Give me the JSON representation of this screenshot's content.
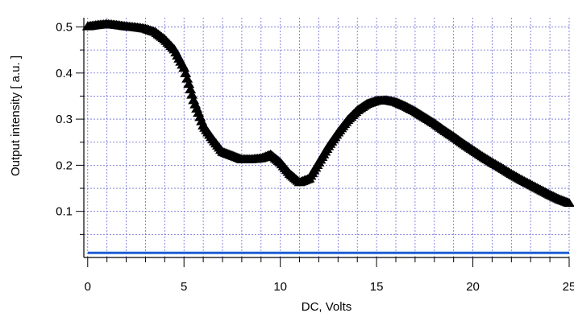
{
  "chart_data": {
    "type": "scatter",
    "xlabel": "DC, Volts",
    "ylabel": "Output intensity [ a.u. ]",
    "xlim": [
      -0.2,
      25
    ],
    "ylim": [
      0.0,
      0.52
    ],
    "xticks": [
      0,
      5,
      10,
      15,
      20,
      25
    ],
    "xtick_labels": [
      "0",
      "5",
      "10",
      "15",
      "20",
      "25"
    ],
    "yticks": [
      0.1,
      0.2,
      0.3,
      0.4,
      0.5
    ],
    "ytick_labels": [
      "0.1",
      "0.2",
      "0.3",
      "0.4",
      "0.5"
    ],
    "grid": true,
    "grid_color": "#6b6bd6",
    "legend": "none",
    "series": [
      {
        "marker": "triangle",
        "color": "#000000",
        "x": [
          0,
          0.5,
          1,
          1.5,
          2,
          2.5,
          3,
          3.5,
          4,
          4.5,
          5,
          5.5,
          6,
          6.5,
          7,
          7.5,
          8,
          8.5,
          9,
          9.5,
          10,
          10.5,
          11,
          11.5,
          12,
          12.5,
          13,
          13.5,
          14,
          14.5,
          15,
          15.5,
          16,
          16.5,
          17,
          17.5,
          18,
          18.5,
          19,
          19.5,
          20,
          20.5,
          21,
          21.5,
          22,
          22.5,
          23,
          23.5,
          24,
          24.5,
          25
        ],
        "y": [
          0.5,
          0.503,
          0.505,
          0.503,
          0.5,
          0.498,
          0.495,
          0.488,
          0.472,
          0.45,
          0.41,
          0.34,
          0.285,
          0.255,
          0.228,
          0.22,
          0.212,
          0.212,
          0.214,
          0.222,
          0.205,
          0.18,
          0.162,
          0.17,
          0.205,
          0.24,
          0.27,
          0.297,
          0.318,
          0.332,
          0.339,
          0.34,
          0.336,
          0.327,
          0.316,
          0.303,
          0.29,
          0.275,
          0.261,
          0.246,
          0.232,
          0.218,
          0.205,
          0.193,
          0.18,
          0.168,
          0.157,
          0.146,
          0.135,
          0.125,
          0.117
        ]
      },
      {
        "marker": "line",
        "color": "#1f5fd6",
        "x": [
          0,
          25
        ],
        "y": [
          0.01,
          0.01
        ]
      }
    ]
  }
}
